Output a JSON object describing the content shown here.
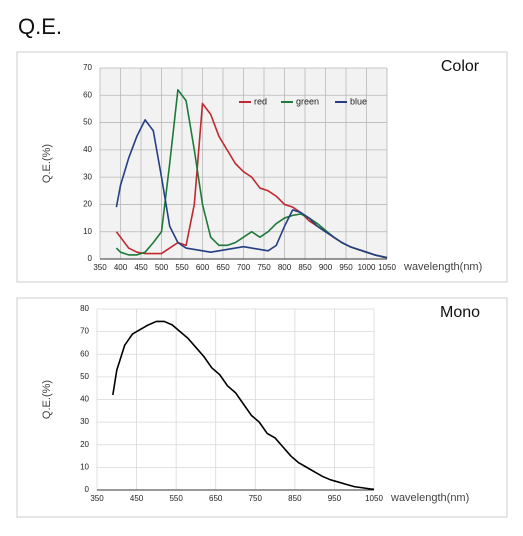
{
  "title": "Q.E.",
  "chart_data": [
    {
      "type": "line",
      "title": "Color",
      "xlabel": "wavelength(nm)",
      "ylabel": "Q.E.(%)",
      "x": [
        390,
        400,
        420,
        440,
        460,
        480,
        500,
        520,
        540,
        560,
        580,
        600,
        620,
        640,
        660,
        680,
        700,
        720,
        740,
        760,
        780,
        800,
        820,
        840,
        860,
        880,
        900,
        920,
        940,
        960,
        980,
        1000,
        1020,
        1040,
        1050
      ],
      "series": [
        {
          "name": "red",
          "color": "#c0292f",
          "values": [
            10,
            8,
            4,
            2.5,
            2,
            2,
            2,
            4,
            6,
            5,
            20,
            57,
            53,
            45,
            40,
            35,
            32,
            30,
            26,
            25,
            23,
            20,
            19,
            17,
            14,
            12,
            10,
            8,
            6,
            4.5,
            3.5,
            2.5,
            1.5,
            0.8,
            0.5
          ]
        },
        {
          "name": "green",
          "color": "#1f7a3a",
          "values": [
            4,
            2.5,
            1.5,
            1.5,
            2.5,
            6,
            10,
            35,
            62,
            58,
            40,
            20,
            8,
            5,
            5,
            6,
            8,
            10,
            8,
            10,
            13,
            15,
            16,
            16.5,
            15,
            13,
            10.5,
            8,
            6,
            4.5,
            3.5,
            2.5,
            1.5,
            0.8,
            0.5
          ]
        },
        {
          "name": "blue",
          "color": "#253f82",
          "values": [
            19,
            27,
            37,
            45,
            51,
            47,
            30,
            12,
            6,
            4,
            3.5,
            3,
            2.5,
            3,
            3.5,
            4,
            4.5,
            4,
            3.5,
            3,
            5,
            12,
            18,
            17,
            15,
            12,
            10,
            8,
            6,
            4.5,
            3.5,
            2.5,
            1.5,
            0.8,
            0.5
          ]
        }
      ],
      "xlim": [
        350,
        1050
      ],
      "xticks": [
        350,
        400,
        450,
        500,
        550,
        600,
        650,
        700,
        750,
        800,
        850,
        900,
        950,
        1000,
        1050
      ],
      "ylim": [
        0,
        70
      ],
      "yticks": [
        0,
        10,
        20,
        30,
        40,
        50,
        60,
        70
      ],
      "grid": true,
      "legend": "upper right"
    },
    {
      "type": "line",
      "title": "Mono",
      "xlabel": "wavelength(nm)",
      "ylabel": "Q.E.(%)",
      "x": [
        390,
        400,
        420,
        440,
        460,
        480,
        500,
        520,
        540,
        560,
        580,
        600,
        620,
        640,
        660,
        680,
        700,
        720,
        740,
        760,
        780,
        800,
        820,
        840,
        860,
        880,
        900,
        920,
        940,
        960,
        980,
        1000,
        1020,
        1040,
        1050
      ],
      "series": [
        {
          "color": "#000000",
          "values": [
            42,
            53,
            64,
            69,
            71,
            73,
            74.5,
            74.5,
            73,
            70,
            67,
            63,
            59,
            54,
            51,
            46,
            43,
            38,
            33,
            30,
            25,
            23,
            19,
            15,
            12,
            10,
            8,
            6,
            4.5,
            3.5,
            2.5,
            1.5,
            1,
            0.5,
            0.3
          ]
        }
      ],
      "xlim": [
        350,
        1050
      ],
      "xticks": [
        350,
        450,
        550,
        650,
        750,
        850,
        950,
        1050
      ],
      "ylim": [
        0,
        80
      ],
      "yticks": [
        0,
        10,
        20,
        30,
        40,
        50,
        60,
        70,
        80
      ],
      "grid": true
    }
  ]
}
